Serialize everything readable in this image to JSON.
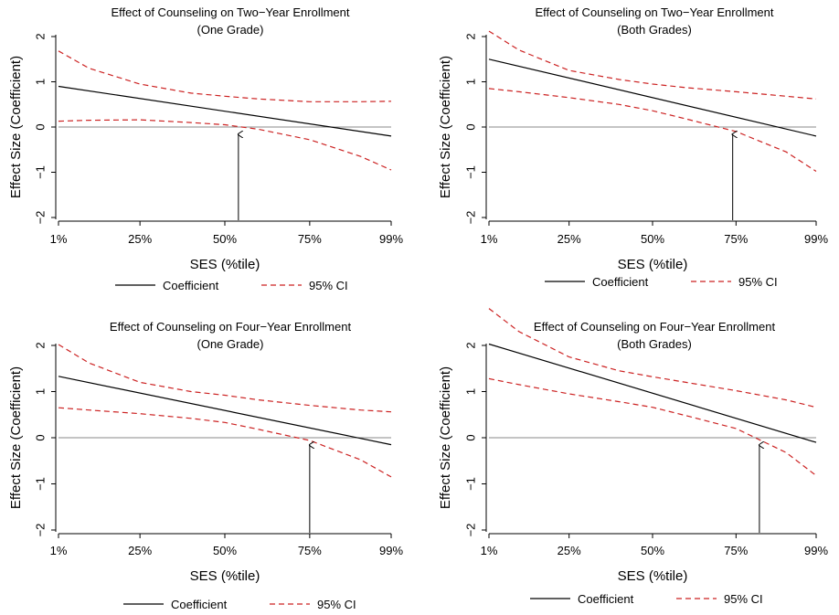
{
  "charts": [
    {
      "title": "Effect of Counseling on Two−Year Enrollment",
      "subtitle": "(One Grade)",
      "ylabel": "Effect Size (Coefficient)",
      "xlabel": "SES (%tile)",
      "legend": {
        "coefficient": "Coefficient",
        "ci": "95% CI"
      }
    },
    {
      "title": "Effect of Counseling on Two−Year Enrollment",
      "subtitle": "(Both Grades)",
      "ylabel": "Effect Size (Coefficient)",
      "xlabel": "SES (%tile)",
      "legend": {
        "coefficient": "Coefficient",
        "ci": "95% CI"
      }
    },
    {
      "title": "Effect of Counseling on Four−Year Enrollment",
      "subtitle": "(One Grade)",
      "ylabel": "Effect Size (Coefficient)",
      "xlabel": "SES (%tile)",
      "legend": {
        "coefficient": "Coefficient",
        "ci": "95% CI"
      }
    },
    {
      "title": "Effect of Counseling on Four−Year Enrollment",
      "subtitle": "(Both Grades)",
      "ylabel": "Effect Size (Coefficient)",
      "xlabel": "SES (%tile)",
      "legend": {
        "coefficient": "Coefficient",
        "ci": "95% CI"
      }
    }
  ],
  "chart_data": [
    {
      "type": "line",
      "x_ticks": [
        "1%",
        "25%",
        "50%",
        "75%",
        "99%"
      ],
      "x_tick_positions": [
        1,
        25,
        50,
        75,
        99
      ],
      "xlim": [
        1,
        99
      ],
      "ylim": [
        -2,
        2
      ],
      "y_ticks": [
        -2,
        -1,
        0,
        1,
        2
      ],
      "reference_line": 0,
      "arrow_at": 54,
      "colors": {
        "coefficient": "#000000",
        "ci": "#cc2222",
        "reference": "#888888"
      },
      "coefficient": {
        "x": [
          1,
          99
        ],
        "y": [
          0.9,
          -0.2
        ]
      },
      "ci_upper": {
        "x": [
          1,
          10,
          25,
          40,
          50,
          60,
          75,
          90,
          99
        ],
        "y": [
          1.68,
          1.3,
          0.95,
          0.75,
          0.68,
          0.62,
          0.56,
          0.56,
          0.57
        ]
      },
      "ci_lower": {
        "x": [
          1,
          10,
          25,
          40,
          50,
          60,
          75,
          90,
          99
        ],
        "y": [
          0.13,
          0.15,
          0.16,
          0.1,
          0.05,
          -0.05,
          -0.28,
          -0.65,
          -0.95
        ]
      }
    },
    {
      "type": "line",
      "x_ticks": [
        "1%",
        "25%",
        "50%",
        "75%",
        "99%"
      ],
      "x_tick_positions": [
        1,
        25,
        50,
        75,
        99
      ],
      "xlim": [
        1,
        99
      ],
      "ylim": [
        -2,
        2
      ],
      "y_ticks": [
        -2,
        -1,
        0,
        1,
        2
      ],
      "reference_line": 0,
      "arrow_at": 74,
      "colors": {
        "coefficient": "#000000",
        "ci": "#cc2222",
        "reference": "#888888"
      },
      "coefficient": {
        "x": [
          1,
          99
        ],
        "y": [
          1.5,
          -0.2
        ]
      },
      "ci_upper": {
        "x": [
          1,
          10,
          25,
          40,
          50,
          60,
          75,
          90,
          99
        ],
        "y": [
          2.12,
          1.7,
          1.25,
          1.05,
          0.95,
          0.87,
          0.78,
          0.68,
          0.62
        ]
      },
      "ci_lower": {
        "x": [
          1,
          10,
          25,
          40,
          50,
          60,
          75,
          90,
          99
        ],
        "y": [
          0.85,
          0.78,
          0.65,
          0.5,
          0.36,
          0.18,
          -0.1,
          -0.55,
          -0.98
        ]
      }
    },
    {
      "type": "line",
      "x_ticks": [
        "1%",
        "25%",
        "50%",
        "75%",
        "99%"
      ],
      "x_tick_positions": [
        1,
        25,
        50,
        75,
        99
      ],
      "xlim": [
        1,
        99
      ],
      "ylim": [
        -2,
        2
      ],
      "y_ticks": [
        -2,
        -1,
        0,
        1,
        2
      ],
      "reference_line": 0,
      "arrow_at": 75,
      "colors": {
        "coefficient": "#000000",
        "ci": "#cc2222",
        "reference": "#888888"
      },
      "coefficient": {
        "x": [
          1,
          99
        ],
        "y": [
          1.33,
          -0.15
        ]
      },
      "ci_upper": {
        "x": [
          1,
          10,
          25,
          40,
          50,
          60,
          75,
          90,
          99
        ],
        "y": [
          2.02,
          1.62,
          1.2,
          1.0,
          0.92,
          0.82,
          0.7,
          0.6,
          0.56
        ]
      },
      "ci_lower": {
        "x": [
          1,
          10,
          25,
          40,
          50,
          60,
          75,
          90,
          99
        ],
        "y": [
          0.65,
          0.6,
          0.52,
          0.42,
          0.33,
          0.18,
          -0.06,
          -0.48,
          -0.85
        ]
      }
    },
    {
      "type": "line",
      "x_ticks": [
        "1%",
        "25%",
        "50%",
        "75%",
        "99%"
      ],
      "x_tick_positions": [
        1,
        25,
        50,
        75,
        99
      ],
      "xlim": [
        1,
        99
      ],
      "ylim": [
        -2,
        2
      ],
      "y_ticks": [
        -2,
        -1,
        0,
        1,
        2
      ],
      "reference_line": 0,
      "arrow_at": 82,
      "colors": {
        "coefficient": "#000000",
        "ci": "#cc2222",
        "reference": "#888888"
      },
      "coefficient": {
        "x": [
          1,
          99
        ],
        "y": [
          2.03,
          -0.1
        ]
      },
      "ci_upper": {
        "x": [
          1,
          10,
          25,
          40,
          50,
          60,
          75,
          90,
          99
        ],
        "y": [
          2.8,
          2.3,
          1.75,
          1.45,
          1.32,
          1.2,
          1.02,
          0.82,
          0.66
        ]
      },
      "ci_lower": {
        "x": [
          1,
          10,
          25,
          40,
          50,
          60,
          75,
          90,
          99
        ],
        "y": [
          1.28,
          1.15,
          0.95,
          0.78,
          0.66,
          0.48,
          0.2,
          -0.32,
          -0.82
        ]
      }
    }
  ]
}
